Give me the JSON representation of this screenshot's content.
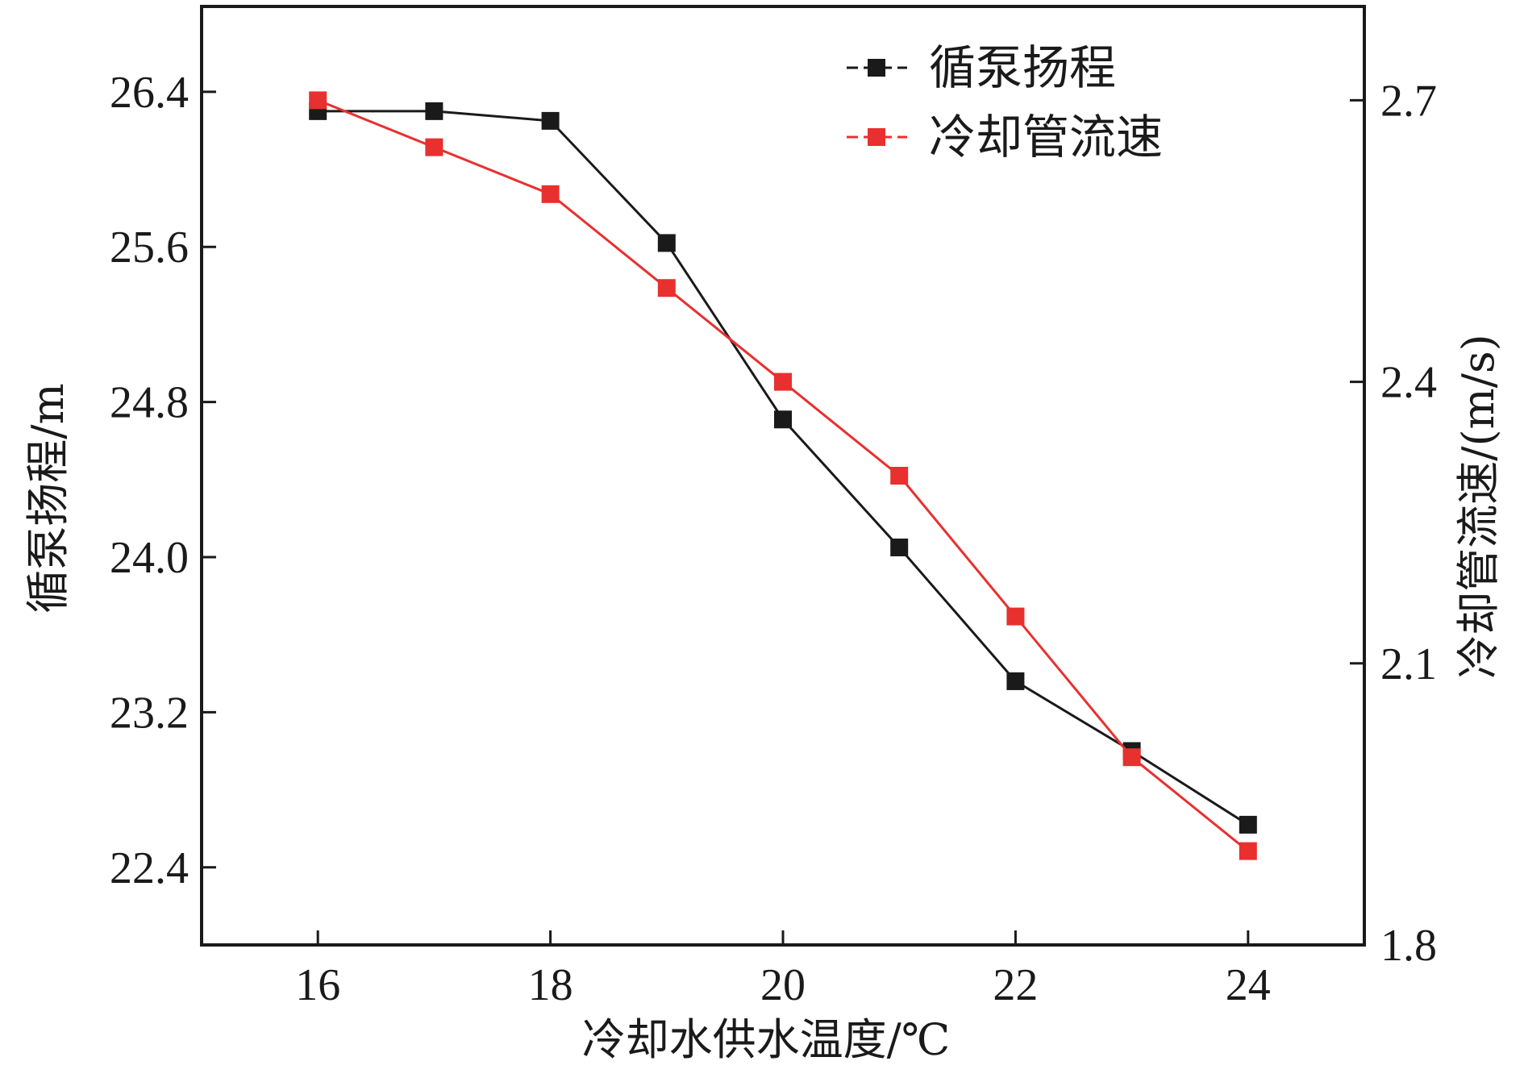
{
  "chart_data": {
    "type": "line",
    "title": "",
    "xlabel": "冷却水供水温度/℃",
    "ylabel": "循泵扬程/m",
    "y2label": "冷却管流速/(m/s)",
    "x": [
      16,
      17,
      18,
      19,
      20,
      21,
      22,
      23,
      24
    ],
    "xlim": [
      15,
      25
    ],
    "xticks": [
      16,
      18,
      20,
      22,
      24
    ],
    "xtick_labels": [
      "16",
      "18",
      "20",
      "22",
      "24"
    ],
    "ylim": [
      22.0,
      26.84
    ],
    "yticks": [
      22.4,
      23.2,
      24.0,
      24.8,
      25.6,
      26.4
    ],
    "ytick_labels": [
      "22.4",
      "23.2",
      "24.0",
      "24.8",
      "25.6",
      "26.4"
    ],
    "y2lim": [
      1.8,
      2.8
    ],
    "y2ticks": [
      1.8,
      2.1,
      2.4,
      2.7
    ],
    "y2tick_labels": [
      "1.8",
      "2.1",
      "2.4",
      "2.7"
    ],
    "legend_position": "top-right",
    "grid": false,
    "series": [
      {
        "name": "循泵扬程",
        "axis": "left",
        "color": "#1a1a1a",
        "marker": "square",
        "values": [
          26.3,
          26.3,
          26.25,
          25.62,
          24.71,
          24.05,
          23.36,
          23.0,
          22.62
        ]
      },
      {
        "name": "冷却管流速",
        "axis": "right",
        "color": "#e8302f",
        "marker": "square",
        "values": [
          2.7,
          2.65,
          2.6,
          2.5,
          2.4,
          2.3,
          2.15,
          2.0,
          1.9
        ]
      }
    ]
  }
}
